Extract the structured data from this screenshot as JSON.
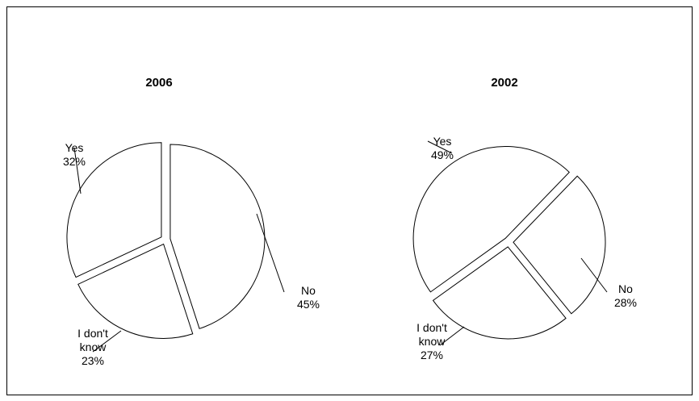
{
  "chart_data": [
    {
      "type": "pie",
      "title": "2006",
      "categories": [
        "No",
        "I don't know",
        "Yes"
      ],
      "values": [
        45,
        23,
        32
      ],
      "value_labels": [
        "45%",
        "23%",
        "32%"
      ],
      "color": "#ffffff"
    },
    {
      "type": "pie",
      "title": "2002",
      "categories": [
        "No",
        "I don't know",
        "Yes"
      ],
      "values": [
        28,
        27,
        49
      ],
      "value_labels": [
        "28%",
        "27%",
        "49%"
      ],
      "color": "#ffffff"
    }
  ]
}
